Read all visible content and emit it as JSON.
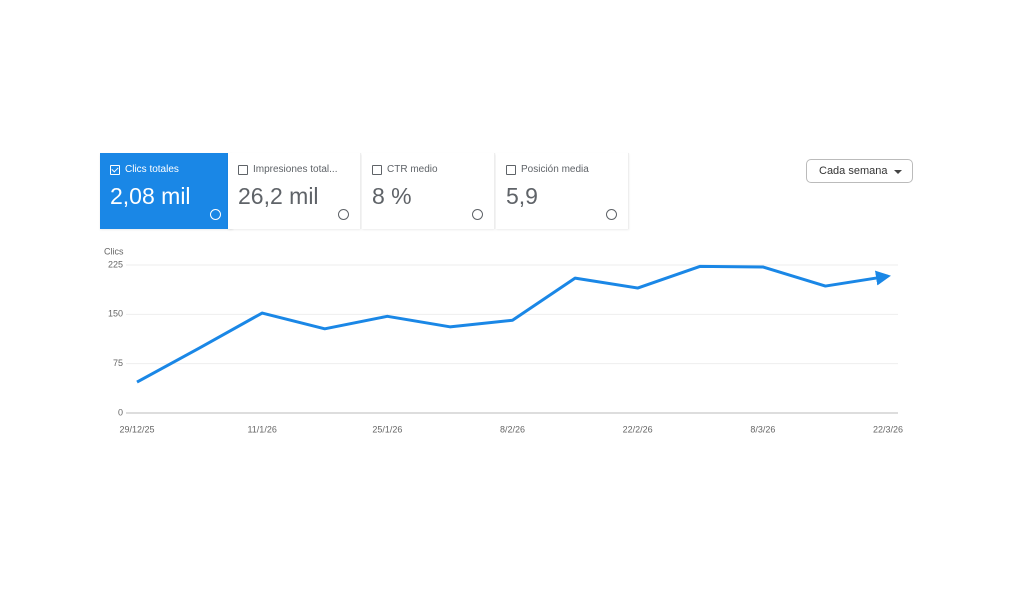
{
  "cards": [
    {
      "label": "Clics totales",
      "value": "2,08 mil",
      "checked": true
    },
    {
      "label": "Impresiones total...",
      "value": "26,2 mil",
      "checked": false
    },
    {
      "label": "CTR medio",
      "value": "8 %",
      "checked": false
    },
    {
      "label": "Posición media",
      "value": "5,9",
      "checked": false
    }
  ],
  "dropdown": "Cada semana",
  "chart_data": {
    "type": "line",
    "y_label": "Clics",
    "categories": [
      "29/12/25",
      null,
      "11/1/26",
      null,
      "25/1/26",
      null,
      "8/2/26",
      null,
      "22/2/26",
      null,
      "8/3/26",
      null,
      "22/3/26"
    ],
    "series": [
      {
        "color": "#1a87e6",
        "values": [
          47,
          99,
          152,
          128,
          147,
          131,
          141,
          205,
          190,
          223,
          222,
          193,
          208
        ]
      }
    ],
    "ylim": [
      0,
      225
    ],
    "yticks": [
      0,
      75,
      150,
      225
    ],
    "grid": true
  }
}
